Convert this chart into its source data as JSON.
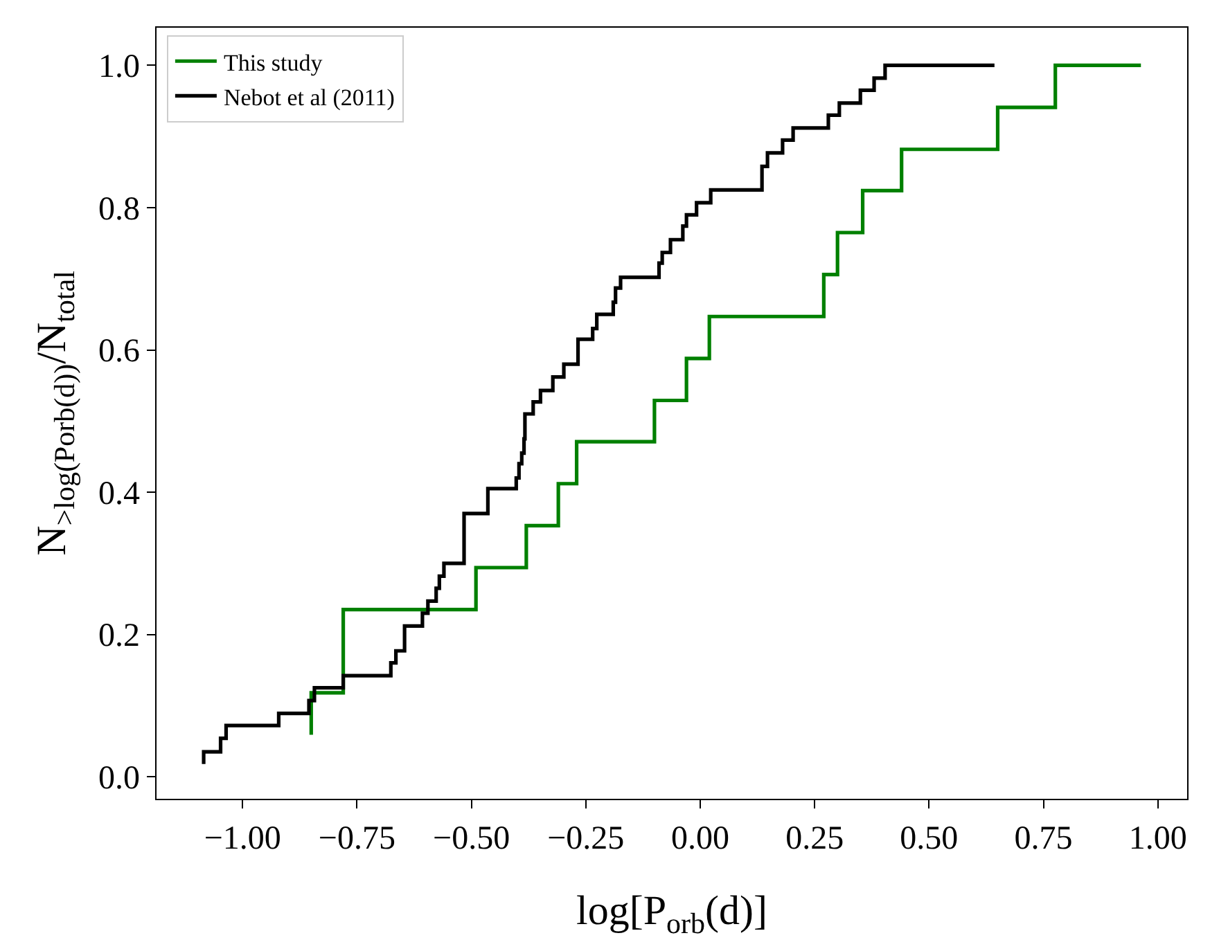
{
  "chart_data": {
    "type": "step",
    "xlabel": "log[P$_{orb}$(d)]",
    "ylabel": "N$_{>log(Porb(d))}$/N$_{total}$",
    "xlim": [
      -1.188,
      1.064
    ],
    "ylim": [
      -0.031,
      1.053
    ],
    "xticks": [
      {
        "value": -1,
        "label": "−1.00"
      },
      {
        "value": -0.75,
        "label": "−0.75"
      },
      {
        "value": -0.5,
        "label": "−0.50"
      },
      {
        "value": -0.25,
        "label": "−0.25"
      },
      {
        "value": 0,
        "label": "0.00"
      },
      {
        "value": 0.25,
        "label": "0.25"
      },
      {
        "value": 0.5,
        "label": "0.50"
      },
      {
        "value": 0.75,
        "label": "0.75"
      },
      {
        "value": 1,
        "label": "1.00"
      }
    ],
    "yticks": [
      {
        "value": 0,
        "label": "0.0"
      },
      {
        "value": 0.2,
        "label": "0.2"
      },
      {
        "value": 0.4,
        "label": "0.4"
      },
      {
        "value": 0.6,
        "label": "0.6"
      },
      {
        "value": 0.8,
        "label": "0.8"
      },
      {
        "value": 1,
        "label": "1.0"
      }
    ],
    "grid": false,
    "legend": "top left",
    "marker": "none",
    "series": [
      {
        "name": "This study",
        "color": "#008000",
        "x": [
          -0.85,
          -0.85,
          -0.78,
          -0.49,
          -0.38,
          -0.31,
          -0.27,
          -0.1,
          -0.03,
          0.02,
          0.27,
          0.3,
          0.355,
          0.44,
          0.65,
          0.776,
          0.963
        ],
        "values": [
          0.059,
          0.118,
          0.235,
          0.294,
          0.353,
          0.412,
          0.471,
          0.529,
          0.588,
          0.647,
          0.706,
          0.765,
          0.824,
          0.882,
          0.941,
          1.0,
          1.0
        ]
      },
      {
        "name": "Nebot et al (2011)",
        "color": "#000000",
        "x": [
          -1.085,
          -1.085,
          -1.048,
          -1.036,
          -0.921,
          -0.855,
          -0.843,
          -0.78,
          -0.676,
          -0.665,
          -0.646,
          -0.607,
          -0.595,
          -0.577,
          -0.57,
          -0.56,
          -0.516,
          -0.464,
          -0.402,
          -0.396,
          -0.39,
          -0.385,
          -0.383,
          -0.365,
          -0.349,
          -0.322,
          -0.298,
          -0.267,
          -0.235,
          -0.226,
          -0.19,
          -0.185,
          -0.174,
          -0.09,
          -0.083,
          -0.065,
          -0.038,
          -0.03,
          -0.008,
          0.023,
          0.135,
          0.147,
          0.18,
          0.203,
          0.28,
          0.304,
          0.35,
          0.38,
          0.404,
          0.643
        ],
        "values": [
          0.018,
          0.035,
          0.054,
          0.072,
          0.089,
          0.107,
          0.125,
          0.142,
          0.16,
          0.177,
          0.212,
          0.23,
          0.247,
          0.265,
          0.282,
          0.3,
          0.37,
          0.405,
          0.42,
          0.44,
          0.455,
          0.475,
          0.51,
          0.527,
          0.543,
          0.562,
          0.58,
          0.615,
          0.63,
          0.65,
          0.667,
          0.687,
          0.702,
          0.722,
          0.737,
          0.755,
          0.774,
          0.79,
          0.807,
          0.825,
          0.858,
          0.877,
          0.895,
          0.912,
          0.93,
          0.947,
          0.965,
          0.982,
          1.0,
          1.0
        ]
      }
    ]
  }
}
